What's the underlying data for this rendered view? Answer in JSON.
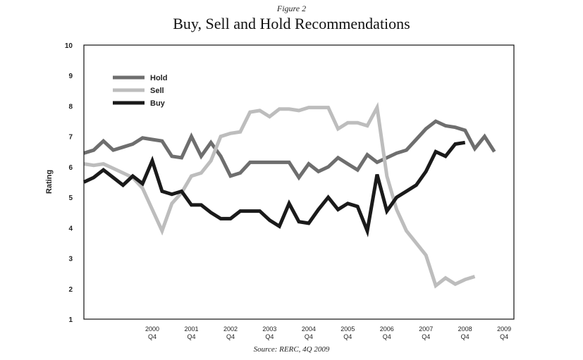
{
  "figure_label": "Figure 2",
  "source": "Source: RERC, 4Q 2009",
  "colors": {
    "Hold": "#6e6e6e",
    "Sell": "#bdbdbd",
    "Buy": "#1a1a1a"
  },
  "chart_data": {
    "type": "line",
    "title": "Buy, Sell and Hold Recommendations",
    "xlabel": "",
    "ylabel": "Rating",
    "ylim": [
      1,
      10
    ],
    "yticks": [
      1,
      2,
      3,
      4,
      5,
      6,
      7,
      8,
      9,
      10
    ],
    "xlim": [
      1999.0,
      2010.0
    ],
    "xticks": [
      {
        "year": "2000",
        "q": "Q4",
        "x": 2000.75
      },
      {
        "year": "2001",
        "q": "Q4",
        "x": 2001.75
      },
      {
        "year": "2002",
        "q": "Q4",
        "x": 2002.75
      },
      {
        "year": "2003",
        "q": "Q4",
        "x": 2003.75
      },
      {
        "year": "2004",
        "q": "Q4",
        "x": 2004.75
      },
      {
        "year": "2005",
        "q": "Q4",
        "x": 2005.75
      },
      {
        "year": "2006",
        "q": "Q4",
        "x": 2006.75
      },
      {
        "year": "2007",
        "q": "Q4",
        "x": 2007.75
      },
      {
        "year": "2008",
        "q": "Q4",
        "x": 2008.75
      },
      {
        "year": "2009",
        "q": "Q4",
        "x": 2009.75
      }
    ],
    "grid": false,
    "legend_position": "top-left",
    "series": [
      {
        "name": "Hold",
        "points": [
          [
            1999.0,
            6.45
          ],
          [
            1999.25,
            6.55
          ],
          [
            1999.5,
            6.85
          ],
          [
            1999.75,
            6.55
          ],
          [
            2000.0,
            6.65
          ],
          [
            2000.25,
            6.75
          ],
          [
            2000.5,
            6.95
          ],
          [
            2000.75,
            6.9
          ],
          [
            2001.0,
            6.85
          ],
          [
            2001.25,
            6.35
          ],
          [
            2001.5,
            6.3
          ],
          [
            2001.75,
            7.0
          ],
          [
            2002.0,
            6.35
          ],
          [
            2002.25,
            6.8
          ],
          [
            2002.5,
            6.35
          ],
          [
            2002.75,
            5.7
          ],
          [
            2003.0,
            5.8
          ],
          [
            2003.25,
            6.15
          ],
          [
            2003.5,
            6.15
          ],
          [
            2003.75,
            6.15
          ],
          [
            2004.0,
            6.15
          ],
          [
            2004.25,
            6.15
          ],
          [
            2004.5,
            5.65
          ],
          [
            2004.75,
            6.1
          ],
          [
            2005.0,
            5.85
          ],
          [
            2005.25,
            6.0
          ],
          [
            2005.5,
            6.3
          ],
          [
            2005.75,
            6.1
          ],
          [
            2006.0,
            5.9
          ],
          [
            2006.25,
            6.4
          ],
          [
            2006.5,
            6.15
          ],
          [
            2006.75,
            6.3
          ],
          [
            2007.0,
            6.45
          ],
          [
            2007.25,
            6.55
          ],
          [
            2007.5,
            6.9
          ],
          [
            2007.75,
            7.25
          ],
          [
            2008.0,
            7.5
          ],
          [
            2008.25,
            7.35
          ],
          [
            2008.5,
            7.3
          ],
          [
            2008.75,
            7.2
          ],
          [
            2009.0,
            6.6
          ],
          [
            2009.25,
            7.0
          ],
          [
            2009.5,
            6.5
          ]
        ]
      },
      {
        "name": "Sell",
        "points": [
          [
            1999.0,
            6.1
          ],
          [
            1999.25,
            6.05
          ],
          [
            1999.5,
            6.1
          ],
          [
            1999.75,
            5.95
          ],
          [
            2000.0,
            5.8
          ],
          [
            2000.25,
            5.65
          ],
          [
            2000.5,
            5.3
          ],
          [
            2000.75,
            4.6
          ],
          [
            2001.0,
            3.9
          ],
          [
            2001.25,
            4.8
          ],
          [
            2001.5,
            5.15
          ],
          [
            2001.75,
            5.7
          ],
          [
            2002.0,
            5.8
          ],
          [
            2002.25,
            6.2
          ],
          [
            2002.5,
            7.0
          ],
          [
            2002.75,
            7.1
          ],
          [
            2003.0,
            7.15
          ],
          [
            2003.25,
            7.8
          ],
          [
            2003.5,
            7.85
          ],
          [
            2003.75,
            7.65
          ],
          [
            2004.0,
            7.9
          ],
          [
            2004.25,
            7.9
          ],
          [
            2004.5,
            7.85
          ],
          [
            2004.75,
            7.95
          ],
          [
            2005.0,
            7.95
          ],
          [
            2005.25,
            7.95
          ],
          [
            2005.5,
            7.25
          ],
          [
            2005.75,
            7.45
          ],
          [
            2006.0,
            7.45
          ],
          [
            2006.25,
            7.35
          ],
          [
            2006.5,
            7.95
          ],
          [
            2006.75,
            5.7
          ],
          [
            2007.0,
            4.6
          ],
          [
            2007.25,
            3.9
          ],
          [
            2007.5,
            3.5
          ],
          [
            2007.75,
            3.1
          ],
          [
            2008.0,
            2.1
          ],
          [
            2008.25,
            2.35
          ],
          [
            2008.5,
            2.15
          ],
          [
            2008.75,
            2.3
          ],
          [
            2009.0,
            2.4
          ]
        ]
      },
      {
        "name": "Buy",
        "points": [
          [
            1999.0,
            5.5
          ],
          [
            1999.25,
            5.65
          ],
          [
            1999.5,
            5.9
          ],
          [
            1999.75,
            5.65
          ],
          [
            2000.0,
            5.4
          ],
          [
            2000.25,
            5.7
          ],
          [
            2000.5,
            5.45
          ],
          [
            2000.75,
            6.2
          ],
          [
            2001.0,
            5.2
          ],
          [
            2001.25,
            5.1
          ],
          [
            2001.5,
            5.2
          ],
          [
            2001.75,
            4.75
          ],
          [
            2002.0,
            4.75
          ],
          [
            2002.25,
            4.5
          ],
          [
            2002.5,
            4.3
          ],
          [
            2002.75,
            4.3
          ],
          [
            2003.0,
            4.55
          ],
          [
            2003.25,
            4.55
          ],
          [
            2003.5,
            4.55
          ],
          [
            2003.75,
            4.25
          ],
          [
            2004.0,
            4.05
          ],
          [
            2004.25,
            4.8
          ],
          [
            2004.5,
            4.2
          ],
          [
            2004.75,
            4.15
          ],
          [
            2005.0,
            4.6
          ],
          [
            2005.25,
            5.0
          ],
          [
            2005.5,
            4.6
          ],
          [
            2005.75,
            4.8
          ],
          [
            2006.0,
            4.7
          ],
          [
            2006.25,
            3.9
          ],
          [
            2006.5,
            5.75
          ],
          [
            2006.75,
            4.55
          ],
          [
            2007.0,
            5.0
          ],
          [
            2007.25,
            5.2
          ],
          [
            2007.5,
            5.4
          ],
          [
            2007.75,
            5.85
          ],
          [
            2008.0,
            6.5
          ],
          [
            2008.25,
            6.35
          ],
          [
            2008.5,
            6.75
          ],
          [
            2008.75,
            6.8
          ]
        ]
      }
    ]
  }
}
